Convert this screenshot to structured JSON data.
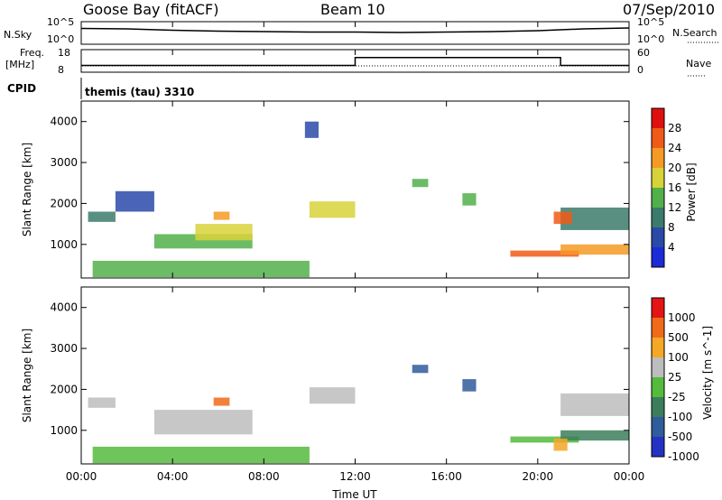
{
  "header": {
    "station": "Goose Bay (fitACF)",
    "beam": "Beam 10",
    "date": "07/Sep/2010"
  },
  "strip_labels": {
    "nsky": "N.Sky",
    "nsky_top": "10^5",
    "nsky_bottom": "10^0",
    "nsearch": "N.Search",
    "freq_line1": "Freq.",
    "freq_line2": "[MHz]",
    "freq_top": "18",
    "freq_bottom": "8",
    "nave": "Nave",
    "nave_top": "60",
    "nave_bottom": "0",
    "cpid": "CPID",
    "cpid_value": "themis (tau) 3310"
  },
  "axes": {
    "x_ticks": [
      "00:00",
      "04:00",
      "08:00",
      "12:00",
      "16:00",
      "20:00",
      "00:00"
    ],
    "xlabel": "Time UT",
    "ylabel": "Slant Range [km]",
    "y_ticks": [
      "1000",
      "2000",
      "3000",
      "4000"
    ]
  },
  "colorbars": {
    "power": {
      "label": "Power [dB]",
      "ticks": [
        "4",
        "8",
        "12",
        "16",
        "20",
        "24",
        "28"
      ],
      "colors": [
        "#1b2bd6",
        "#2a4aa8",
        "#3b7b6b",
        "#52b04a",
        "#d8d23a",
        "#f59a24",
        "#f05a18",
        "#e01010"
      ]
    },
    "velocity": {
      "label": "Velocity [m s^-1]",
      "ticks": [
        "1000",
        "500",
        "100",
        "25",
        "-25",
        "-100",
        "-500",
        "-1000"
      ],
      "colors": [
        "#2432c4",
        "#2f5c9a",
        "#3c7e5c",
        "#55bb3c",
        "#bdbdbd",
        "#f5a726",
        "#f06a1a",
        "#e41414"
      ]
    }
  },
  "chart_data": [
    {
      "type": "line",
      "name": "N.Sky / N.Search",
      "x_hours": [
        0,
        2,
        4,
        6,
        8,
        10,
        12,
        14,
        16,
        18,
        20,
        22,
        24
      ],
      "values_log10": [
        3.5,
        3.4,
        3.1,
        2.9,
        2.8,
        2.7,
        2.7,
        2.6,
        2.7,
        2.8,
        3.0,
        3.4,
        3.6
      ],
      "ylim": [
        0,
        5
      ]
    },
    {
      "type": "line",
      "name": "Freq",
      "x_hours": [
        0,
        12,
        12,
        21,
        21,
        24
      ],
      "values": [
        11,
        11,
        14.5,
        14.5,
        11,
        11
      ],
      "ylim": [
        8,
        18
      ]
    },
    {
      "type": "heatmap",
      "name": "Power",
      "xlim": [
        0,
        24
      ],
      "ylim": [
        180,
        4500
      ],
      "regions": [
        {
          "x": [
            0.3,
            1.5
          ],
          "y": [
            1550,
            1800
          ],
          "level": 2
        },
        {
          "x": [
            1.5,
            3.2
          ],
          "y": [
            1800,
            2300
          ],
          "level": 1
        },
        {
          "x": [
            3.2,
            7.5
          ],
          "y": [
            900,
            1250
          ],
          "level": 3
        },
        {
          "x": [
            5.0,
            7.5
          ],
          "y": [
            1100,
            1500
          ],
          "level": 4
        },
        {
          "x": [
            5.8,
            6.5
          ],
          "y": [
            1600,
            1800
          ],
          "level": 5
        },
        {
          "x": [
            10.0,
            12.0
          ],
          "y": [
            1650,
            2050
          ],
          "level": 4
        },
        {
          "x": [
            9.8,
            10.4
          ],
          "y": [
            3600,
            4000
          ],
          "level": 1
        },
        {
          "x": [
            14.5,
            15.2
          ],
          "y": [
            2400,
            2600
          ],
          "level": 3
        },
        {
          "x": [
            16.7,
            17.3
          ],
          "y": [
            1950,
            2250
          ],
          "level": 3
        },
        {
          "x": [
            18.8,
            21.8
          ],
          "y": [
            700,
            850
          ],
          "level": 6
        },
        {
          "x": [
            21.0,
            24.0
          ],
          "y": [
            750,
            1000
          ],
          "level": 5
        },
        {
          "x": [
            21.0,
            24.0
          ],
          "y": [
            1350,
            1900
          ],
          "level": 2
        },
        {
          "x": [
            20.7,
            21.5
          ],
          "y": [
            1500,
            1800
          ],
          "level": 6
        },
        {
          "x": [
            0.5,
            10.0
          ],
          "y": [
            200,
            600
          ],
          "level": 3
        }
      ]
    },
    {
      "type": "heatmap",
      "name": "Velocity",
      "xlim": [
        0,
        24
      ],
      "ylim": [
        180,
        4500
      ],
      "regions": [
        {
          "x": [
            0.3,
            1.5
          ],
          "y": [
            1550,
            1800
          ],
          "level": 4
        },
        {
          "x": [
            3.2,
            7.5
          ],
          "y": [
            900,
            1500
          ],
          "level": 4
        },
        {
          "x": [
            5.8,
            6.5
          ],
          "y": [
            1600,
            1800
          ],
          "level": 6
        },
        {
          "x": [
            10.0,
            12.0
          ],
          "y": [
            1650,
            2050
          ],
          "level": 4
        },
        {
          "x": [
            14.5,
            15.2
          ],
          "y": [
            2400,
            2600
          ],
          "level": 1
        },
        {
          "x": [
            16.7,
            17.3
          ],
          "y": [
            1950,
            2250
          ],
          "level": 1
        },
        {
          "x": [
            18.8,
            21.8
          ],
          "y": [
            700,
            850
          ],
          "level": 3
        },
        {
          "x": [
            21.0,
            24.0
          ],
          "y": [
            750,
            1000
          ],
          "level": 2
        },
        {
          "x": [
            21.0,
            24.0
          ],
          "y": [
            1350,
            1900
          ],
          "level": 4
        },
        {
          "x": [
            20.7,
            21.3
          ],
          "y": [
            500,
            800
          ],
          "level": 5
        },
        {
          "x": [
            0.5,
            10.0
          ],
          "y": [
            200,
            600
          ],
          "level": 3
        }
      ]
    }
  ]
}
